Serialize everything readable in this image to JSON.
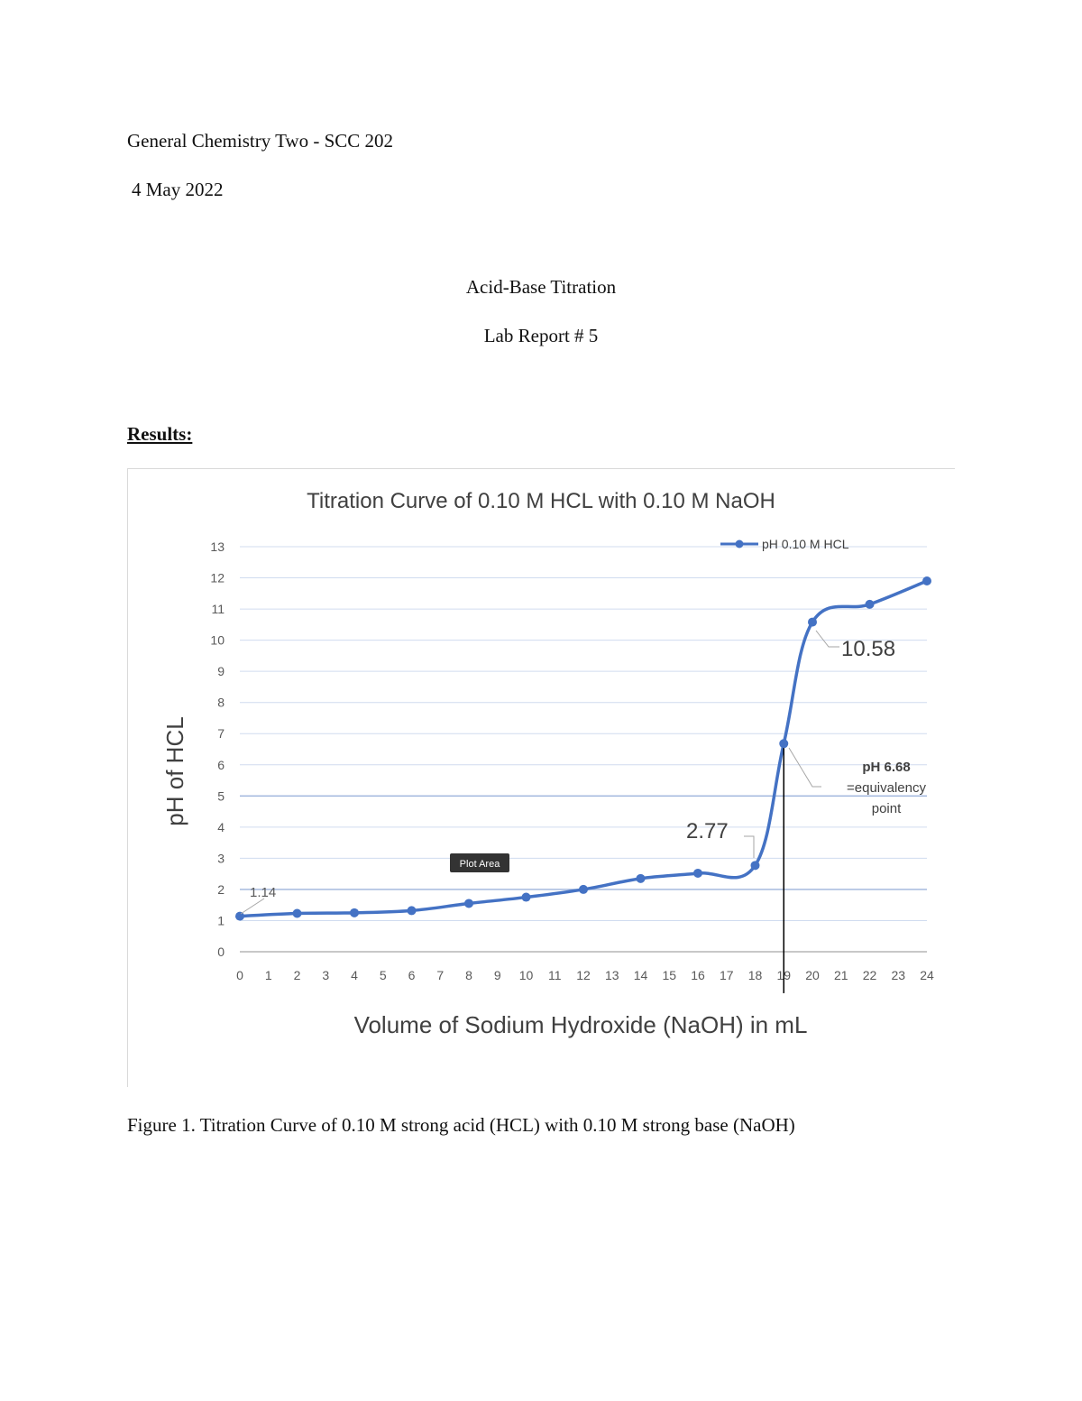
{
  "header": {
    "course": "General Chemistry Two - SCC 202",
    "date": "4 May 2022"
  },
  "title": {
    "main": "Acid-Base Titration",
    "sub": "Lab Report # 5"
  },
  "section_heading": "Results:",
  "figure_caption": "Figure 1. Titration Curve of 0.10 M strong acid (HCL) with 0.10 M strong base (NaOH)",
  "chart_data": {
    "type": "line",
    "title": "Titration Curve of 0.10 M HCL with 0.10 M NaOH",
    "xlabel": "Volume of Sodium Hydroxide (NaOH) in mL",
    "ylabel": "pH of HCL",
    "xlim": [
      0,
      24
    ],
    "ylim": [
      0,
      13
    ],
    "x_ticks": [
      "0",
      "1",
      "2",
      "3",
      "4",
      "5",
      "6",
      "7",
      "8",
      "9",
      "10",
      "11",
      "12",
      "13",
      "14",
      "15",
      "16",
      "17",
      "18",
      "19",
      "20",
      "21",
      "22",
      "23",
      "24"
    ],
    "y_ticks": [
      "0",
      "1",
      "2",
      "3",
      "4",
      "5",
      "6",
      "7",
      "8",
      "9",
      "10",
      "11",
      "12",
      "13"
    ],
    "grid": "horizontal",
    "legend_position": "top-right",
    "line_color": "#4472C4",
    "series": [
      {
        "name": "pH 0.10 M HCL",
        "x": [
          0,
          2,
          4,
          6,
          8,
          10,
          12,
          14,
          16,
          18,
          19,
          20,
          22,
          24
        ],
        "y": [
          1.14,
          1.23,
          1.25,
          1.32,
          1.55,
          1.75,
          2.0,
          2.35,
          2.52,
          2.77,
          6.68,
          10.58,
          11.15,
          11.9
        ]
      }
    ],
    "annotations": {
      "start": "1.14",
      "pre_equivalence": "2.77",
      "post_equivalence": "10.58",
      "equivalence_line1": "pH 6.68",
      "equivalence_line2": "=equivalency",
      "equivalence_line3": "point"
    },
    "tooltip": "Plot Area"
  }
}
